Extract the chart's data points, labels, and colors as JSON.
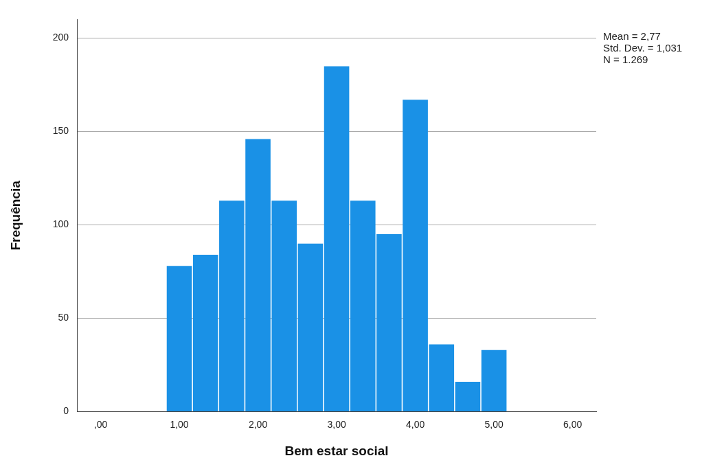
{
  "chart_data": {
    "type": "histogram",
    "xlabel": "Bem estar social",
    "ylabel": "Frequência",
    "bins": [
      0.833,
      1.167,
      1.5,
      1.833,
      2.167,
      2.5,
      2.833,
      3.167,
      3.5,
      3.833,
      4.167,
      4.5,
      4.833,
      5.167
    ],
    "values": [
      78,
      84,
      113,
      146,
      113,
      90,
      185,
      113,
      95,
      167,
      36,
      16,
      33
    ],
    "color": "#1a91e6",
    "xlim": [
      -0.3,
      6.3
    ],
    "xticks": [
      {
        "value": 0,
        "label": ",00"
      },
      {
        "value": 1,
        "label": "1,00"
      },
      {
        "value": 2,
        "label": "2,00"
      },
      {
        "value": 3,
        "label": "3,00"
      },
      {
        "value": 4,
        "label": "4,00"
      },
      {
        "value": 5,
        "label": "5,00"
      },
      {
        "value": 6,
        "label": "6,00"
      }
    ],
    "ylim": [
      0,
      210
    ],
    "yticks": [
      0,
      50,
      100,
      150,
      200
    ],
    "grid": "y",
    "annotations": [
      "Mean = 2,77",
      "Std. Dev. = 1,031",
      "N = 1.269"
    ]
  }
}
